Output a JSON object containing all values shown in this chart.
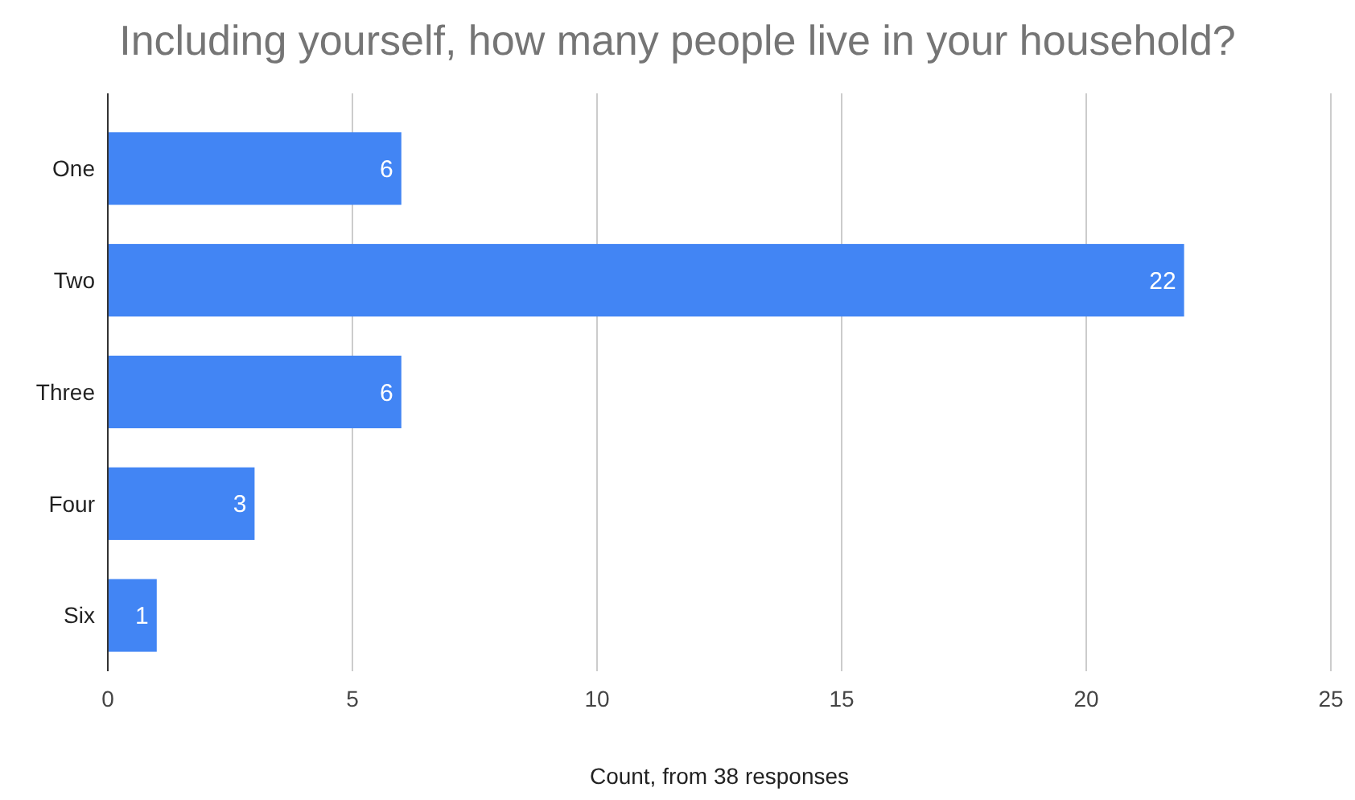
{
  "chart_data": {
    "type": "bar",
    "orientation": "horizontal",
    "title": "Including yourself, how many people live in your household?",
    "xlabel": "Count, from 38 responses",
    "categories": [
      "One",
      "Two",
      "Three",
      "Four",
      "Six"
    ],
    "values": [
      6,
      22,
      6,
      3,
      1
    ],
    "color": "#4285f4",
    "xlim": [
      0,
      25
    ],
    "xticks": [
      0,
      5,
      10,
      15,
      20,
      25
    ],
    "grid": "x",
    "data_labels": true
  }
}
